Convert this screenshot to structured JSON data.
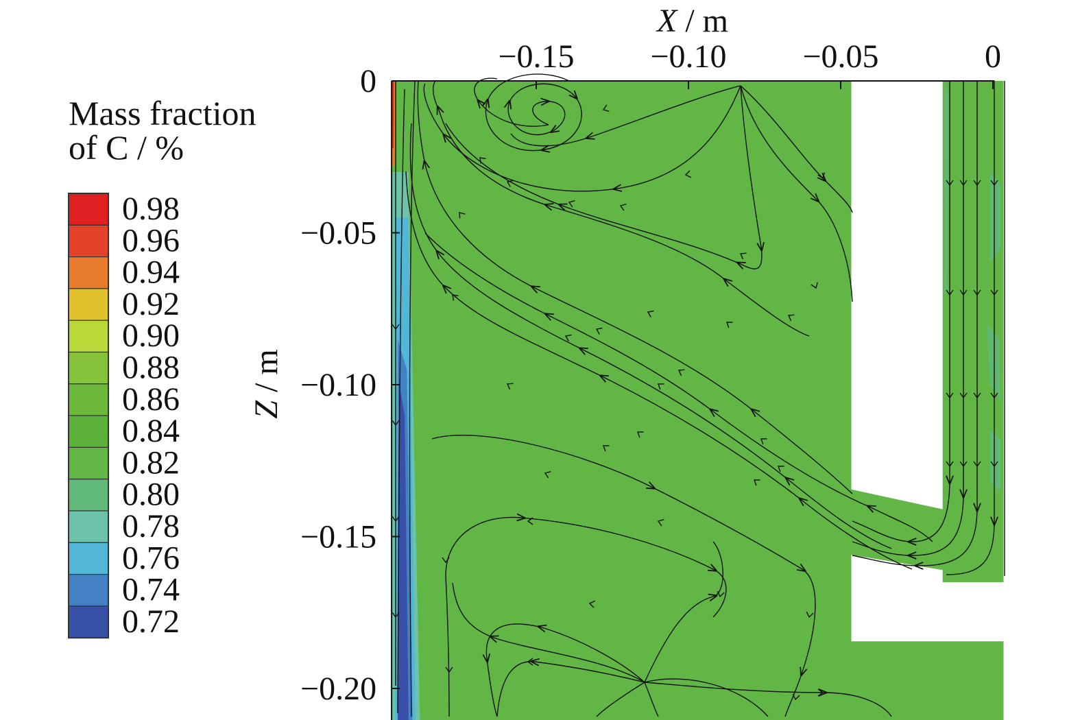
{
  "legend": {
    "title_line1": "Mass fraction",
    "title_line2": "of C / %",
    "levels": [
      {
        "label": "0.98",
        "color": "#e02020"
      },
      {
        "label": "0.96",
        "color": "#e2432a"
      },
      {
        "label": "0.94",
        "color": "#e87c2c"
      },
      {
        "label": "0.92",
        "color": "#e2c22a"
      },
      {
        "label": "0.90",
        "color": "#b9d83a"
      },
      {
        "label": "0.88",
        "color": "#86c33a"
      },
      {
        "label": "0.86",
        "color": "#6bb83a"
      },
      {
        "label": "0.84",
        "color": "#5cb13b"
      },
      {
        "label": "0.82",
        "color": "#62b646"
      },
      {
        "label": "0.80",
        "color": "#61b97a"
      },
      {
        "label": "0.78",
        "color": "#6cc3aa"
      },
      {
        "label": "0.76",
        "color": "#52b6d6"
      },
      {
        "label": "0.74",
        "color": "#4481c4"
      },
      {
        "label": "0.72",
        "color": "#3850a8"
      }
    ]
  },
  "chart_data": {
    "type": "heatmap",
    "variable": "Mass fraction of C / %",
    "xlabel_var": "X",
    "xlabel_unit": " / m",
    "ylabel_var": "Z",
    "ylabel_unit": " / m",
    "xlim": [
      -0.199,
      0.003
    ],
    "ylim": [
      -0.21,
      0.0
    ],
    "xticks": [
      {
        "value": -0.15,
        "label": "−0.15"
      },
      {
        "value": -0.1,
        "label": "−0.10"
      },
      {
        "value": -0.05,
        "label": "−0.05"
      },
      {
        "value": 0.0,
        "label": "0"
      }
    ],
    "yticks": [
      {
        "value": 0.0,
        "label": "0"
      },
      {
        "value": -0.05,
        "label": "−0.05"
      },
      {
        "value": -0.1,
        "label": "−0.10"
      },
      {
        "value": -0.15,
        "label": "−0.15"
      },
      {
        "value": -0.2,
        "label": "−0.20"
      }
    ],
    "field_level": "0.82",
    "wall_minimum_level": "0.72",
    "wall_maximum_level": "0.98",
    "field_color": "#62b646",
    "streamline_color": "#111111",
    "domain_x": [
      -0.199,
      0.004
    ],
    "domain_z": [
      -0.21,
      0.0
    ]
  }
}
